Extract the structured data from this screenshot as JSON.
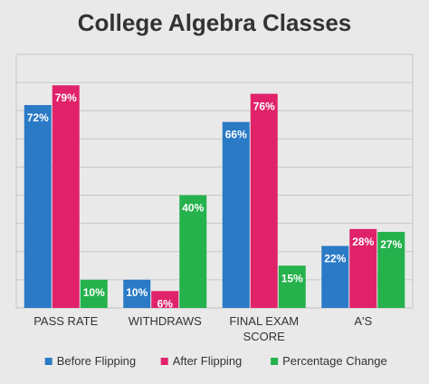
{
  "chart_data": {
    "type": "bar",
    "title": "College Algebra Classes",
    "categories": [
      "PASS RATE",
      "WITHDRAWS",
      "FINAL EXAM SCORE",
      "A'S"
    ],
    "category_lines": [
      [
        "PASS RATE"
      ],
      [
        "WITHDRAWS"
      ],
      [
        "FINAL EXAM",
        "SCORE"
      ],
      [
        "A'S"
      ]
    ],
    "series": [
      {
        "name": "Before Flipping",
        "color": "#2a7ac6",
        "values": [
          72,
          10,
          66,
          22
        ],
        "labels": [
          "72%",
          "10%",
          "66%",
          "22%"
        ]
      },
      {
        "name": "After Flipping",
        "color": "#e0226a",
        "values": [
          79,
          6,
          76,
          28
        ],
        "labels": [
          "79%",
          "6%",
          "76%",
          "28%"
        ]
      },
      {
        "name": "Percentage Change",
        "color": "#25b14c",
        "values": [
          10,
          40,
          15,
          27
        ],
        "labels": [
          "10%",
          "40%",
          "15%",
          "27%"
        ]
      }
    ],
    "ylim": [
      0,
      90
    ],
    "y_gridlines": [
      10,
      20,
      30,
      40,
      50,
      60,
      70,
      80,
      90
    ],
    "grid": true,
    "legend_position": "bottom",
    "xlabel": "",
    "ylabel": ""
  }
}
